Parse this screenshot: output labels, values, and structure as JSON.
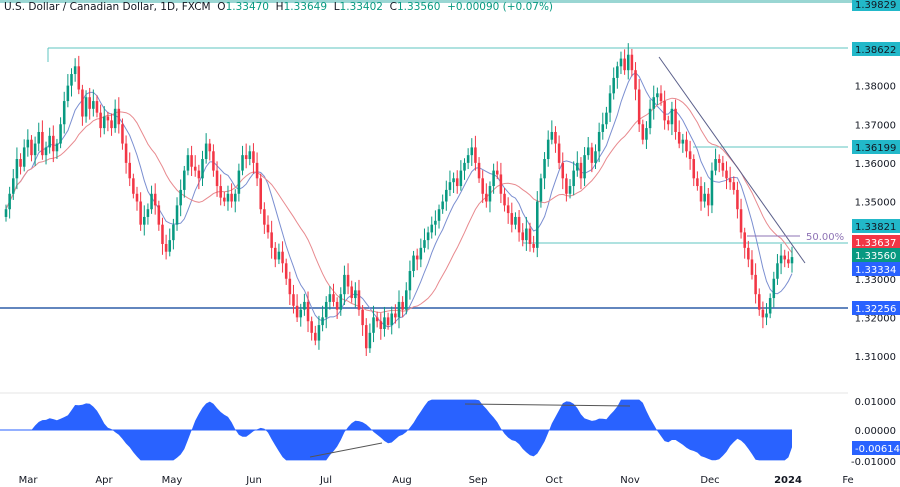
{
  "header": {
    "symbol_title": "U.S. Dollar / Canadian Dollar, 1D, FXCM",
    "open_label": "O",
    "open": "1.33470",
    "high_label": "H",
    "high": "1.33649",
    "low_label": "L",
    "low": "1.33402",
    "close_label": "C",
    "close": "1.33560",
    "change": "+0.00090 (+0.07%)"
  },
  "colors": {
    "up": "#089981",
    "down": "#f23645",
    "ma_fast": "#7b8fd1",
    "ma_slow": "#e88a8f",
    "level_line": "#5fc4c1",
    "support_line": "#2f5fa8",
    "trendline": "#5a5f8a",
    "fib": "#8e73b5",
    "osc_fill": "#2962ff",
    "label_cyan": "#22b8c9",
    "label_red": "#f23645",
    "label_green": "#089981",
    "label_blue": "#2962ff"
  },
  "price_axis": {
    "ticks": [
      "1.39000",
      "1.38000",
      "1.37000",
      "1.36000",
      "1.35000",
      "1.33000",
      "1.32000",
      "1.31000"
    ],
    "labels": [
      {
        "value": "1.39829",
        "color": "#22b8c9",
        "name": "top-level-label"
      },
      {
        "value": "1.38622",
        "color": "#22b8c9",
        "name": "resistance-level-label"
      },
      {
        "value": "1.36199",
        "color": "#22b8c9",
        "name": "lower-high-level-label"
      },
      {
        "value": "1.33821",
        "color": "#22b8c9",
        "name": "swing-level-label"
      },
      {
        "value": "1.33637",
        "color": "#f23645",
        "name": "ma-slow-label"
      },
      {
        "value": "1.33560",
        "color": "#089981",
        "name": "last-price-label"
      },
      {
        "value": "1.33334",
        "color": "#2962ff",
        "name": "ma-fast-label"
      },
      {
        "value": "1.32256",
        "color": "#2962ff",
        "name": "support-level-label"
      }
    ]
  },
  "osc_axis": {
    "ticks": [
      "0.01000",
      "0.00000",
      "-0.01000"
    ],
    "current_label": "-0.00614"
  },
  "time_axis": {
    "labels": [
      "Mar",
      "Apr",
      "May",
      "Jun",
      "Jul",
      "Aug",
      "Sep",
      "Oct",
      "Nov",
      "Dec",
      "2024",
      "Fe"
    ]
  },
  "annotations": {
    "fib_label": "50.00%"
  },
  "chart_data": {
    "type": "candlestick",
    "title": "U.S. Dollar / Canadian Dollar, 1D, FXCM",
    "ohlc_last": {
      "open": 1.3347,
      "high": 1.33649,
      "low": 1.33402,
      "close": 1.3356,
      "change": 0.0009,
      "change_pct": 0.07
    },
    "x_labels": [
      "Mar",
      "Apr",
      "May",
      "Jun",
      "Jul",
      "Aug",
      "Sep",
      "Oct",
      "Nov",
      "Dec",
      "2024",
      "Fe"
    ],
    "ylim": [
      1.3065,
      1.399
    ],
    "y_ticks": [
      1.31,
      1.32,
      1.33,
      1.35,
      1.36,
      1.37,
      1.38,
      1.39
    ],
    "horizontal_levels": [
      1.38622,
      1.36199,
      1.33821,
      1.32256
    ],
    "fib_50": 1.33995,
    "moving_averages": {
      "fast_last": 1.33334,
      "slow_last": 1.33637
    },
    "oscillator": {
      "ylim": [
        -0.0115,
        0.0115
      ],
      "ticks": [
        0.01,
        0.0,
        -0.01
      ],
      "last": -0.00614
    },
    "candles_close_approx": [
      1.348,
      1.352,
      1.356,
      1.361,
      1.359,
      1.364,
      1.366,
      1.362,
      1.365,
      1.368,
      1.362,
      1.364,
      1.367,
      1.363,
      1.365,
      1.37,
      1.376,
      1.38,
      1.383,
      1.385,
      1.379,
      1.372,
      1.377,
      1.374,
      1.376,
      1.373,
      1.369,
      1.372,
      1.371,
      1.369,
      1.374,
      1.37,
      1.365,
      1.36,
      1.356,
      1.352,
      1.35,
      1.344,
      1.346,
      1.348,
      1.352,
      1.349,
      1.344,
      1.339,
      1.337,
      1.34,
      1.344,
      1.349,
      1.353,
      1.358,
      1.362,
      1.359,
      1.358,
      1.356,
      1.361,
      1.365,
      1.363,
      1.358,
      1.354,
      1.351,
      1.35,
      1.352,
      1.35,
      1.352,
      1.358,
      1.362,
      1.361,
      1.363,
      1.36,
      1.356,
      1.348,
      1.344,
      1.342,
      1.338,
      1.335,
      1.337,
      1.334,
      1.33,
      1.326,
      1.323,
      1.32,
      1.322,
      1.324,
      1.319,
      1.316,
      1.314,
      1.318,
      1.32,
      1.324,
      1.326,
      1.324,
      1.322,
      1.326,
      1.331,
      1.328,
      1.325,
      1.327,
      1.322,
      1.318,
      1.312,
      1.316,
      1.32,
      1.319,
      1.317,
      1.32,
      1.318,
      1.321,
      1.32,
      1.324,
      1.322,
      1.327,
      1.332,
      1.336,
      1.335,
      1.338,
      1.34,
      1.342,
      1.344,
      1.345,
      1.348,
      1.35,
      1.353,
      1.355,
      1.356,
      1.354,
      1.358,
      1.36,
      1.362,
      1.364,
      1.36,
      1.356,
      1.352,
      1.35,
      1.354,
      1.358,
      1.357,
      1.352,
      1.349,
      1.347,
      1.344,
      1.346,
      1.342,
      1.34,
      1.343,
      1.339,
      1.338,
      1.35,
      1.356,
      1.361,
      1.366,
      1.368,
      1.365,
      1.36,
      1.356,
      1.352,
      1.354,
      1.358,
      1.36,
      1.356,
      1.362,
      1.364,
      1.36,
      1.363,
      1.368,
      1.37,
      1.373,
      1.378,
      1.382,
      1.385,
      1.387,
      1.384,
      1.388,
      1.384,
      1.379,
      1.37,
      1.366,
      1.369,
      1.374,
      1.377,
      1.378,
      1.376,
      1.371,
      1.37,
      1.374,
      1.368,
      1.365,
      1.366,
      1.363,
      1.361,
      1.356,
      1.354,
      1.35,
      1.352,
      1.349,
      1.358,
      1.361,
      1.36,
      1.358,
      1.356,
      1.355,
      1.353,
      1.348,
      1.342,
      1.338,
      1.335,
      1.331,
      1.326,
      1.322,
      1.32,
      1.321,
      1.325,
      1.33,
      1.334,
      1.336,
      1.335,
      1.334,
      1.3356
    ]
  }
}
